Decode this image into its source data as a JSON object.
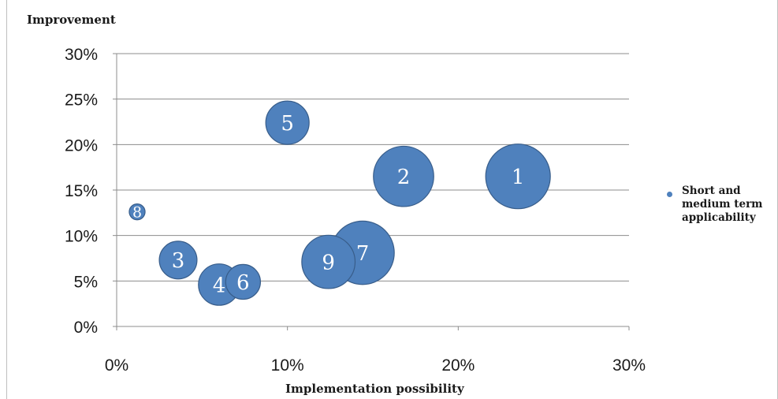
{
  "chart_data": {
    "type": "bubble",
    "title": "",
    "xlabel": "Implementation possibility",
    "ylabel": "Improvement",
    "xlim": [
      0,
      0.3
    ],
    "ylim": [
      0,
      0.3
    ],
    "x_ticks": [
      0,
      0.1,
      0.2,
      0.3
    ],
    "x_tick_labels": [
      "0%",
      "10%",
      "20%",
      "30%"
    ],
    "y_ticks": [
      0,
      0.05,
      0.1,
      0.15,
      0.2,
      0.25,
      0.3
    ],
    "y_tick_labels": [
      "0%",
      "5%",
      "10%",
      "15%",
      "20%",
      "25%",
      "30%"
    ],
    "grid": "horizontal",
    "legend_position": "right",
    "colors": {
      "bubble_fill": "#4f81bd",
      "bubble_stroke": "#385d8a",
      "bubble_text": "#ffffff"
    },
    "series": [
      {
        "name": "Short and medium term applicability",
        "points": [
          {
            "label": "1",
            "x": 0.235,
            "y": 0.165,
            "size": 1.0
          },
          {
            "label": "2",
            "x": 0.168,
            "y": 0.165,
            "size": 0.87
          },
          {
            "label": "3",
            "x": 0.036,
            "y": 0.073,
            "size": 0.34
          },
          {
            "label": "4",
            "x": 0.06,
            "y": 0.046,
            "size": 0.41
          },
          {
            "label": "5",
            "x": 0.1,
            "y": 0.224,
            "size": 0.45
          },
          {
            "label": "6",
            "x": 0.074,
            "y": 0.049,
            "size": 0.29
          },
          {
            "label": "7",
            "x": 0.144,
            "y": 0.081,
            "size": 0.96
          },
          {
            "label": "8",
            "x": 0.012,
            "y": 0.126,
            "size": 0.06
          },
          {
            "label": "9",
            "x": 0.124,
            "y": 0.071,
            "size": 0.68
          }
        ]
      }
    ]
  }
}
